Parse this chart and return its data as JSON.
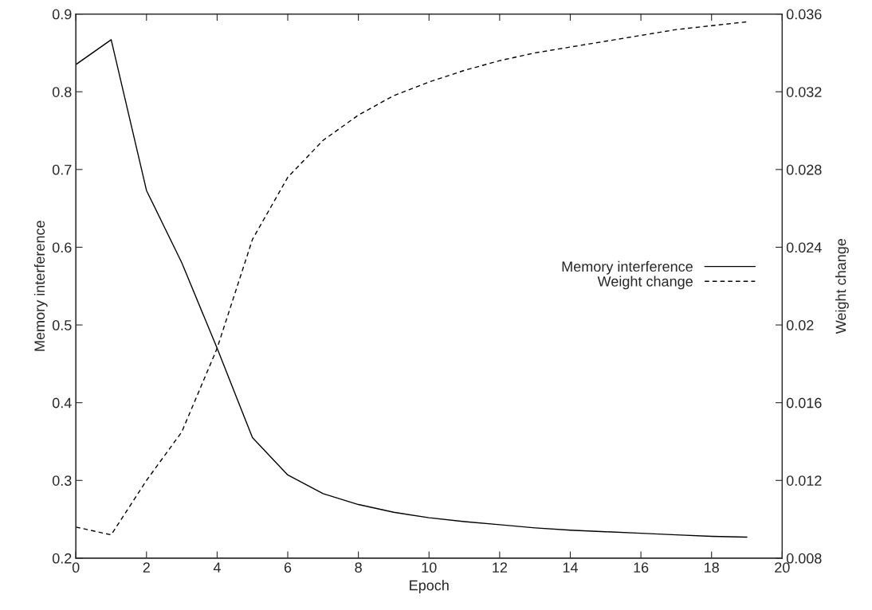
{
  "chart_data": {
    "type": "line",
    "xlabel": "Epoch",
    "ylabel": "Memory interference",
    "y2label": "Weight change",
    "x": [
      0,
      1,
      2,
      3,
      4,
      5,
      6,
      7,
      8,
      9,
      10,
      11,
      12,
      13,
      14,
      15,
      16,
      17,
      18,
      19
    ],
    "series": [
      {
        "name": "Memory interference",
        "color": "#000000",
        "line_style": "solid",
        "values": [
          0.835,
          0.867,
          0.673,
          0.58,
          0.47,
          0.355,
          0.307,
          0.283,
          0.269,
          0.259,
          0.252,
          0.247,
          0.243,
          0.239,
          0.236,
          0.234,
          0.232,
          0.23,
          0.228,
          0.227
        ]
      },
      {
        "name": "Weight change",
        "color": "#000000",
        "line_style": "dashed",
        "axis": "y2",
        "values": [
          0.0096,
          0.0092,
          0.012,
          0.0145,
          0.0188,
          0.0244,
          0.0276,
          0.0295,
          0.0308,
          0.0318,
          0.0325,
          0.0331,
          0.0336,
          0.034,
          0.0343,
          0.0346,
          0.0349,
          0.0352,
          0.0354,
          0.0356
        ]
      }
    ],
    "xlim": [
      0,
      20
    ],
    "xticks": [
      0,
      2,
      4,
      6,
      8,
      10,
      12,
      14,
      16,
      18,
      20
    ],
    "ylim": [
      0.2,
      0.9
    ],
    "yticks": [
      0.2,
      0.3,
      0.4,
      0.5,
      0.6,
      0.7,
      0.8,
      0.9
    ],
    "y2lim": [
      0.008,
      0.036
    ],
    "y2ticks": [
      0.008,
      0.012,
      0.016,
      0.02,
      0.024,
      0.028,
      0.032,
      0.036
    ],
    "legend": "right",
    "grid": false
  }
}
